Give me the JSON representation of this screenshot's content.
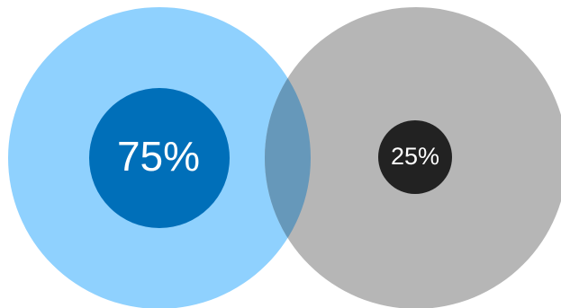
{
  "venn": {
    "left": {
      "label": "75%",
      "value": 75,
      "outer_color": "#8fd1fe",
      "inner_color": "#006fb9"
    },
    "right": {
      "label": "25%",
      "value": 25,
      "outer_color": "#b6b6b6",
      "inner_color": "#222222"
    },
    "overlap_color": "#6698ba"
  }
}
